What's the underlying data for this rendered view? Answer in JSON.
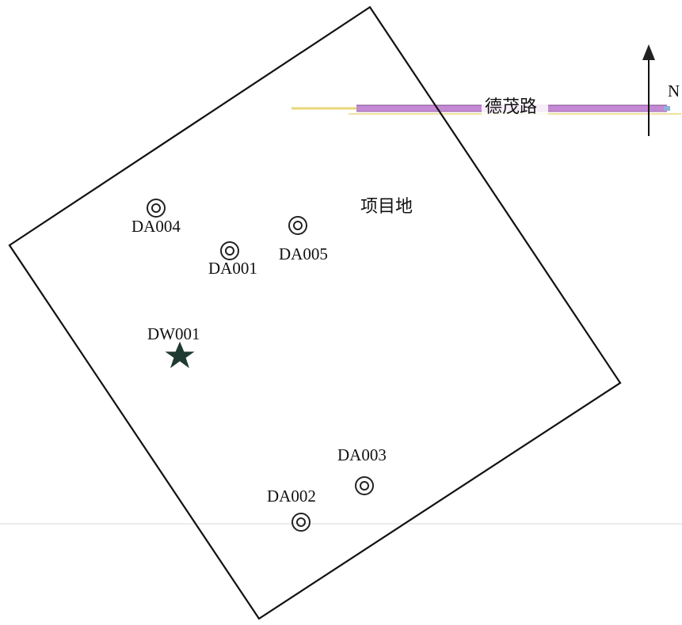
{
  "map": {
    "road_label": "德茂路",
    "site_label": "项目地",
    "north_label": "N",
    "colors": {
      "boundary": "#111111",
      "road_main": "#c58ad6",
      "road_edge": "#e8d77a",
      "road_dark": "#7d4f8a",
      "marker": "#222222",
      "star": "#1f3a33"
    },
    "points": [
      {
        "id": "DA004",
        "type": "sampling-well",
        "label": "DA004"
      },
      {
        "id": "DA005",
        "type": "sampling-well",
        "label": "DA005"
      },
      {
        "id": "DA001",
        "type": "sampling-well",
        "label": "DA001"
      },
      {
        "id": "DW001",
        "type": "star",
        "label": "DW001"
      },
      {
        "id": "DA003",
        "type": "sampling-well",
        "label": "DA003"
      },
      {
        "id": "DA002",
        "type": "sampling-well",
        "label": "DA002"
      }
    ]
  }
}
